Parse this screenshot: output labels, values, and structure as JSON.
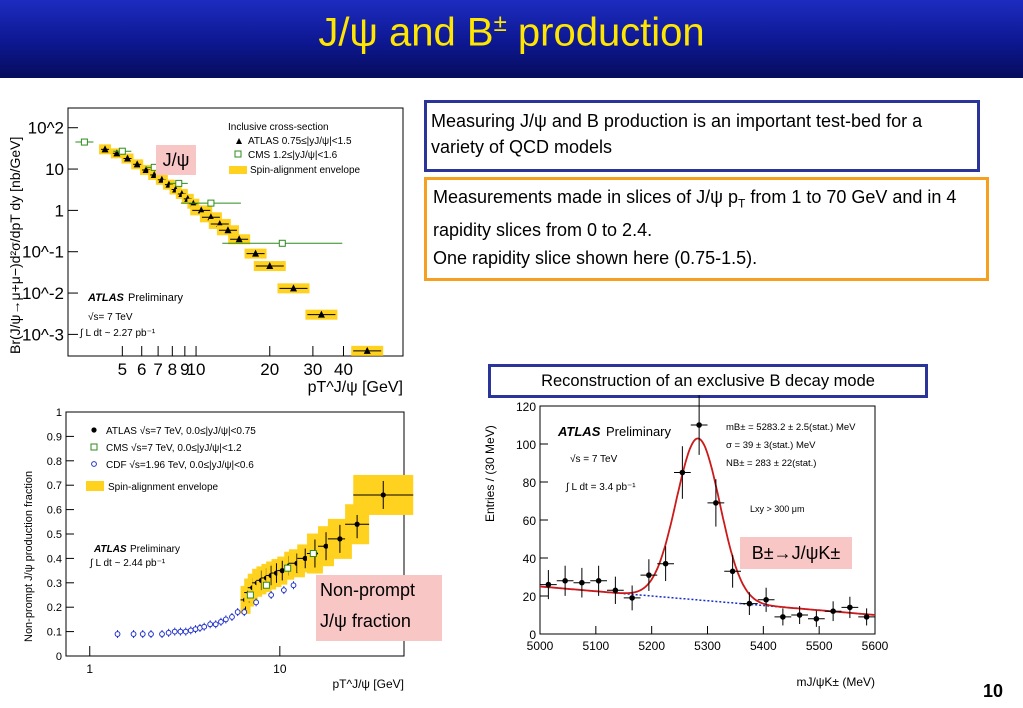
{
  "slide": {
    "title_main": "J/ψ and B",
    "title_sup": "±",
    "title_end": " production",
    "page_number": "10"
  },
  "textbox1": "Measuring J/ψ and B production is an important test-bed for a variety of QCD models",
  "textbox2": {
    "line1_pre": "Measurements made in slices of J/ψ p",
    "line1_sub": "T",
    "line1_post": " from 1 to 70 GeV and in 4 rapidity slices from 0 to 2.4.",
    "line2": "One rapidity slice shown here (0.75-1.5)."
  },
  "textbox3": "Reconstruction of an exclusive B decay mode",
  "labels": {
    "jpsi": "J/ψ",
    "nonprompt_line1": "Non-prompt",
    "nonprompt_line2": "J/ψ fraction",
    "bdecay": "B±→J/ψK±"
  },
  "chart_data": [
    {
      "type": "scatter",
      "ylabel": "Br(J/ψ→μ+μ−)d²σ/dpT dy [nb/GeV]",
      "xlabel": "pT^J/ψ [GeV]",
      "xscale": "log",
      "yscale": "log",
      "xlim": [
        3,
        70
      ],
      "ylim": [
        0.0003,
        300
      ],
      "xticklabels": [
        "5",
        "6",
        "7",
        "8",
        "9",
        "10",
        "20",
        "30",
        "40"
      ],
      "yticklabels": [
        "10^2",
        "10",
        "1",
        "10^-1",
        "10^-2",
        "10^-3"
      ],
      "legend_title": "Inclusive cross-section",
      "legend": [
        "ATLAS 0.75≤|yJ/ψ|<1.5",
        "CMS 1.2≤|yJ/ψ|<1.6",
        "Spin-alignment envelope"
      ],
      "annotation": [
        "ATLAS Preliminary",
        "√s= 7 TeV",
        "∫ L dt ~ 2.27 pb⁻¹"
      ],
      "series": [
        {
          "name": "ATLAS 0.75≤|yJ/ψ|<1.5",
          "x": [
            4.25,
            4.75,
            5.25,
            5.75,
            6.25,
            6.75,
            7.25,
            7.75,
            8.25,
            8.75,
            9.25,
            9.75,
            10.5,
            11.5,
            12.5,
            13.5,
            15,
            17.5,
            20,
            25,
            32.5,
            50
          ],
          "y": [
            30,
            24,
            18,
            13,
            9.5,
            7.2,
            5.5,
            4.2,
            3.2,
            2.5,
            1.9,
            1.45,
            1.0,
            0.68,
            0.47,
            0.33,
            0.2,
            0.09,
            0.045,
            0.013,
            0.003,
            0.0004
          ]
        },
        {
          "name": "CMS 1.2≤|yJ/ψ|<1.6",
          "x": [
            3.5,
            5.0,
            6.75,
            8.5,
            11.5,
            22.5
          ],
          "y": [
            45,
            27,
            11,
            4.5,
            1.5,
            0.16
          ]
        }
      ]
    },
    {
      "type": "scatter",
      "ylabel": "Non-prompt J/ψ production fraction",
      "xlabel": "pT^J/ψ [GeV]",
      "xscale": "log",
      "xlim": [
        0.75,
        45
      ],
      "ylim": [
        0,
        1
      ],
      "xticklabels": [
        "1",
        "10"
      ],
      "yticklabels": [
        "0",
        "0.1",
        "0.2",
        "0.3",
        "0.4",
        "0.5",
        "0.6",
        "0.7",
        "0.8",
        "0.9",
        "1"
      ],
      "legend": [
        "ATLAS √s=7 TeV, 0.0≤|yJ/ψ|<0.75",
        "CMS √s=7 TeV, 0.0≤|yJ/ψ|<1.2",
        "CDF √s=1.96 TeV, 0.0≤|yJ/ψ|<0.6",
        "Spin-alignment envelope"
      ],
      "annotation": [
        "ATLAS Preliminary",
        "∫ L dt ~ 2.44 pb⁻¹"
      ],
      "series": [
        {
          "name": "ATLAS √s=7 TeV, 0.0≤|yJ/ψ|<0.75",
          "x": [
            6.6,
            6.9,
            7.2,
            7.6,
            8.0,
            8.5,
            9.0,
            9.6,
            10.3,
            11.2,
            12.3,
            13.6,
            15.3,
            17.5,
            20.7,
            25.5,
            35
          ],
          "y": [
            0.23,
            0.26,
            0.28,
            0.3,
            0.31,
            0.32,
            0.33,
            0.34,
            0.35,
            0.37,
            0.38,
            0.4,
            0.42,
            0.45,
            0.48,
            0.54,
            0.66
          ]
        },
        {
          "name": "CMS √s=7 TeV, 0.0≤|yJ/ψ|<1.2",
          "x": [
            7.0,
            8.5,
            11,
            15
          ],
          "y": [
            0.25,
            0.29,
            0.36,
            0.42
          ]
        },
        {
          "name": "CDF √s=1.96 TeV, 0.0≤|yJ/ψ|<0.6",
          "x": [
            1.4,
            1.7,
            1.9,
            2.1,
            2.4,
            2.6,
            2.8,
            3.0,
            3.2,
            3.4,
            3.6,
            3.8,
            4.0,
            4.3,
            4.6,
            4.9,
            5.2,
            5.6,
            6.0,
            6.5,
            7.5,
            9,
            10.5,
            11.8
          ],
          "y": [
            0.09,
            0.09,
            0.09,
            0.09,
            0.09,
            0.095,
            0.1,
            0.1,
            0.1,
            0.105,
            0.11,
            0.115,
            0.12,
            0.13,
            0.13,
            0.14,
            0.15,
            0.16,
            0.18,
            0.18,
            0.22,
            0.25,
            0.27,
            0.29
          ]
        }
      ]
    },
    {
      "type": "scatter",
      "ylabel": "Entries / (30 MeV)",
      "xlabel": "mJ/ψK± (MeV)",
      "xlim": [
        5000,
        5600
      ],
      "ylim": [
        0,
        120
      ],
      "xticklabels": [
        "5000",
        "5100",
        "5200",
        "5300",
        "5400",
        "5500",
        "5600"
      ],
      "yticklabels": [
        "0",
        "20",
        "40",
        "60",
        "80",
        "100",
        "120"
      ],
      "annotation": [
        "ATLAS Preliminary",
        "√s = 7 TeV",
        "∫ L dt = 3.4 pb⁻¹",
        "Lxy > 300 μm"
      ],
      "fit_results": [
        "mB± = 5283.2 ± 2.5(stat.) MeV",
        "σ = 39 ± 3(stat.) MeV",
        "NB± = 283 ± 22(stat.)"
      ],
      "series": [
        {
          "name": "data",
          "x": [
            5015,
            5045,
            5075,
            5105,
            5135,
            5165,
            5195,
            5225,
            5255,
            5285,
            5315,
            5345,
            5375,
            5405,
            5435,
            5465,
            5495,
            5525,
            5555,
            5585
          ],
          "y": [
            26,
            28,
            27,
            28,
            23,
            19,
            31,
            37,
            85,
            110,
            69,
            33,
            16,
            18,
            9,
            10,
            8,
            12,
            14,
            9
          ]
        },
        {
          "name": "fit",
          "peak_mean": 5283.2,
          "peak_sigma": 39,
          "bkg_start": 25,
          "bkg_end": 10
        }
      ]
    }
  ]
}
